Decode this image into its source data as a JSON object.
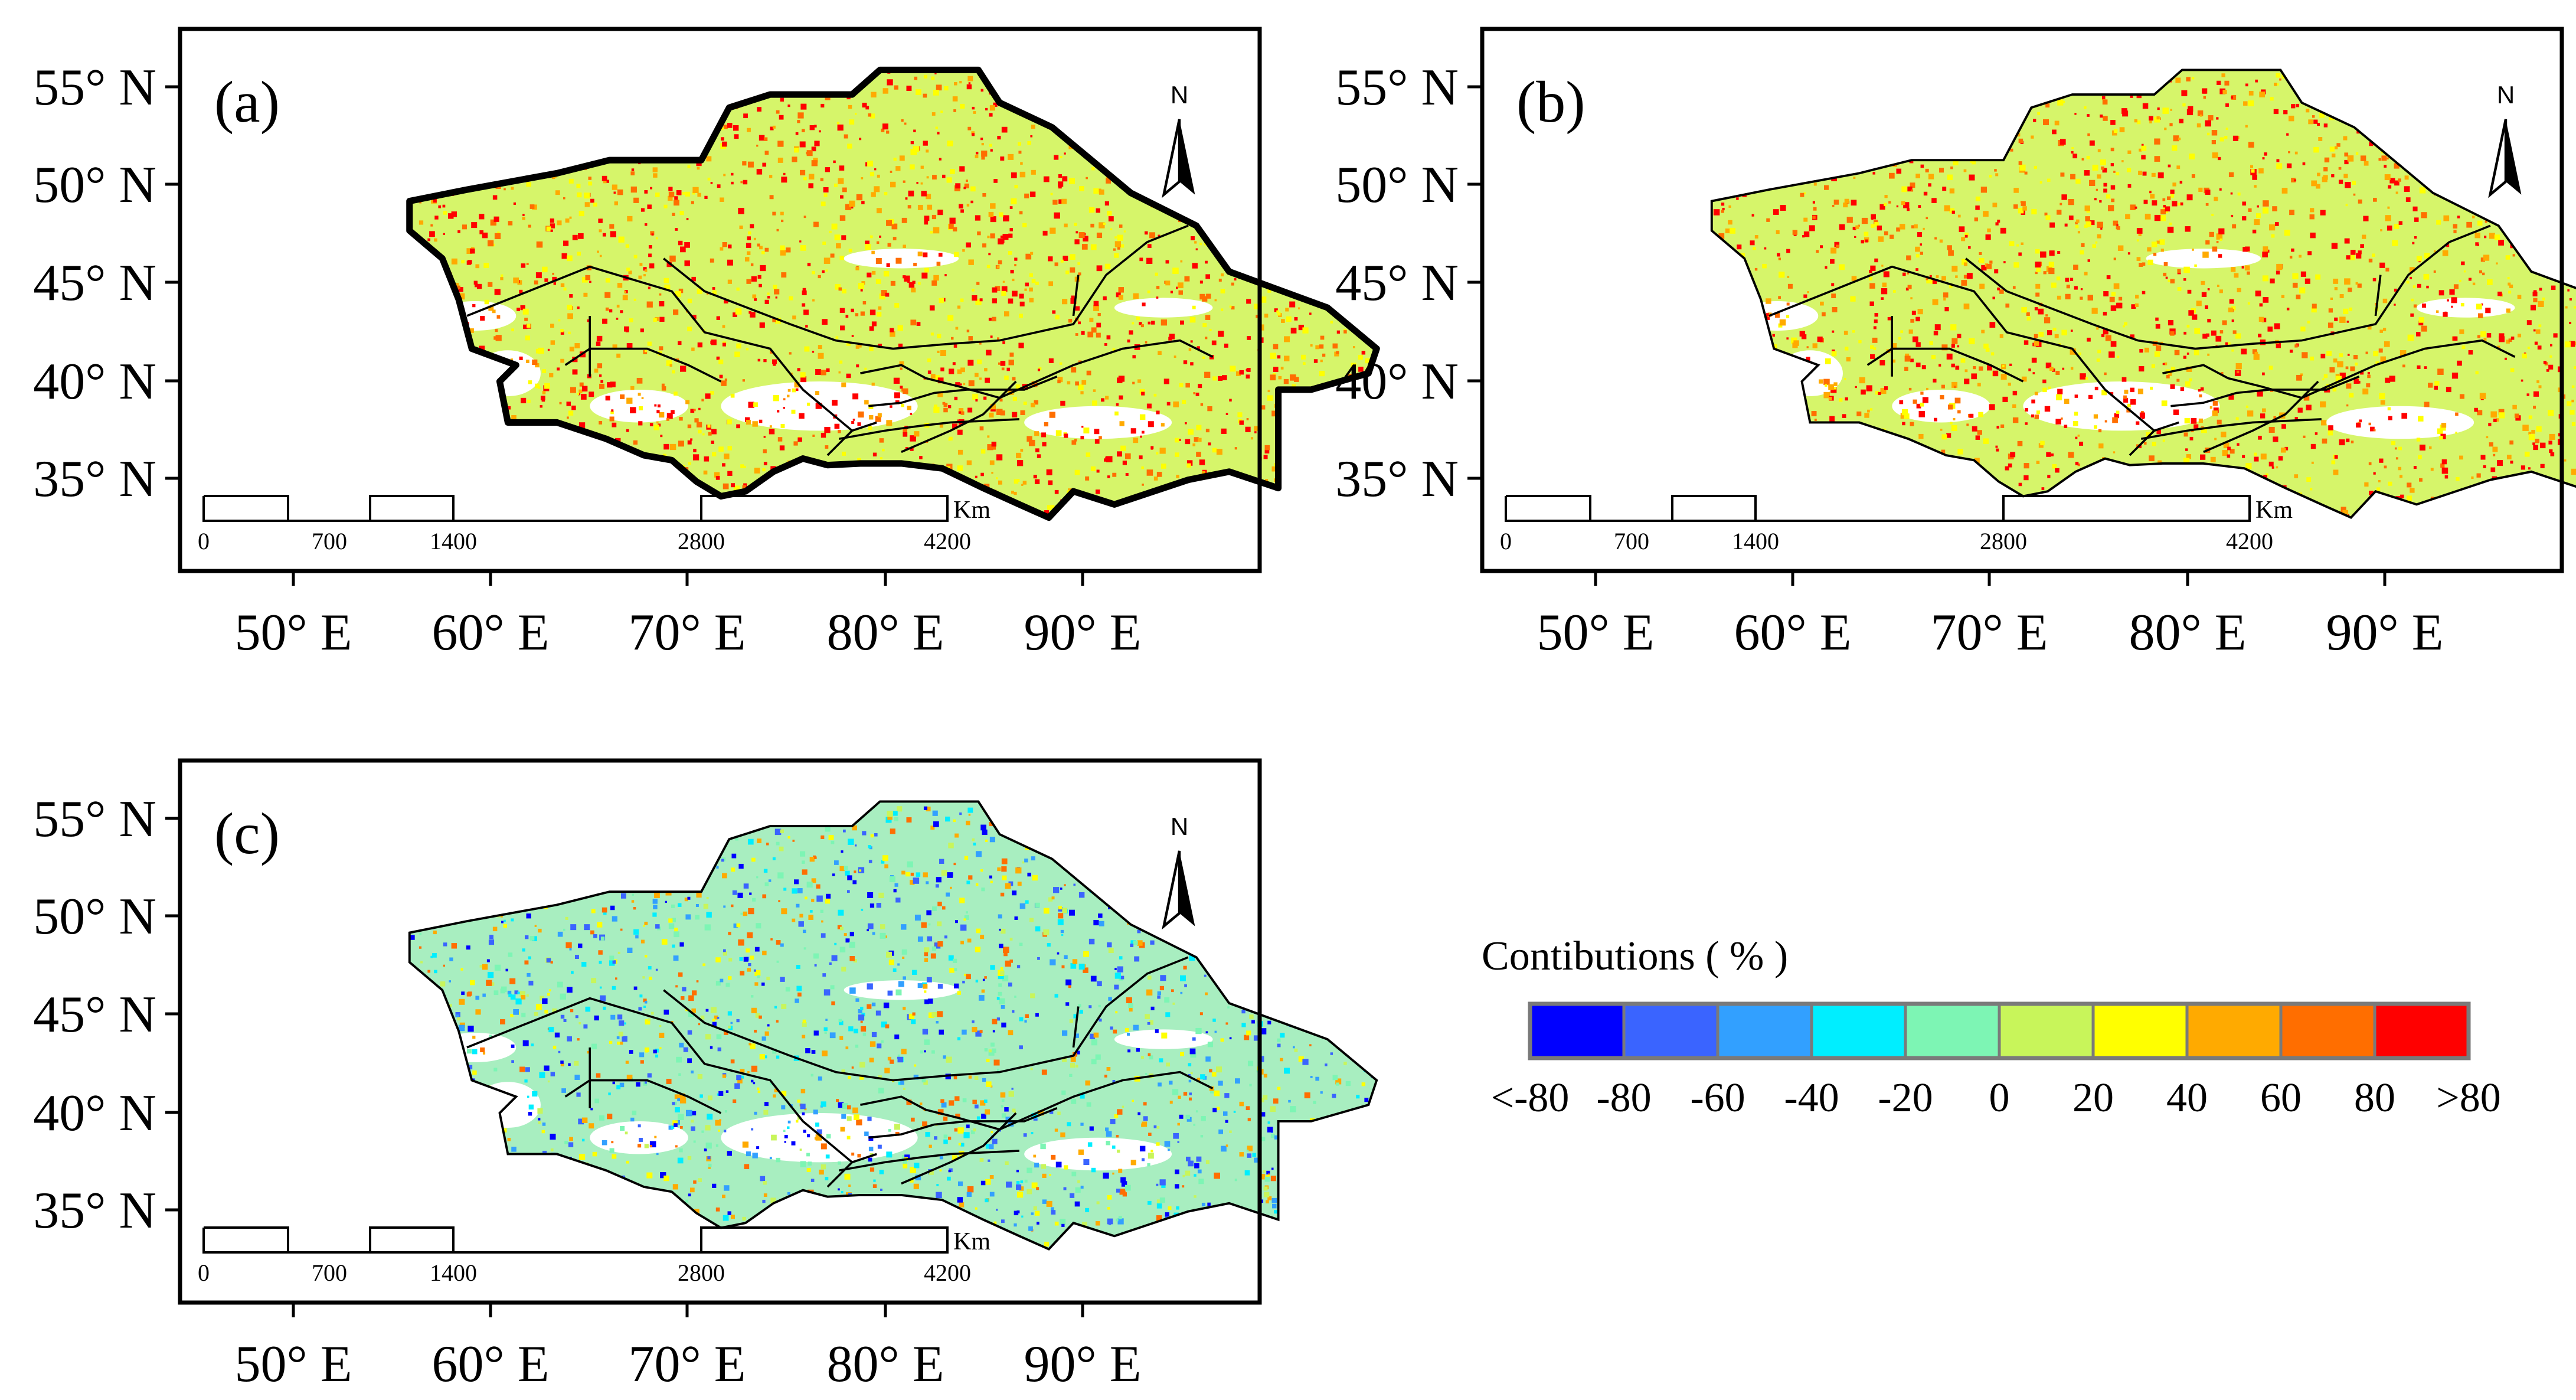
{
  "chart_data": [
    {
      "type": "heatmap",
      "panel_label": "(a)",
      "dominant_classes": [
        "20",
        "40",
        "60",
        "80",
        ">80"
      ],
      "x_ticks": [
        "50° E",
        "60° E",
        "70° E",
        "80° E",
        "90° E"
      ],
      "y_ticks": [
        "55° N",
        "50° N",
        "45° N",
        "40° N",
        "35° N"
      ],
      "north_label": "N",
      "scale_labels": [
        "0",
        "700",
        "1400",
        "2800",
        "4200"
      ],
      "scale_unit": "Km"
    },
    {
      "type": "heatmap",
      "panel_label": "(b)",
      "dominant_classes": [
        "20",
        "40",
        "60",
        "80",
        ">80"
      ],
      "x_ticks": [
        "50° E",
        "60° E",
        "70° E",
        "80° E",
        "90° E"
      ],
      "y_ticks": [
        "55° N",
        "50° N",
        "45° N",
        "40° N",
        "35° N"
      ],
      "north_label": "N",
      "scale_labels": [
        "0",
        "700",
        "1400",
        "2800",
        "4200"
      ],
      "scale_unit": "Km"
    },
    {
      "type": "heatmap",
      "panel_label": "(c)",
      "dominant_classes": [
        "<-80",
        "-80",
        "-60",
        "-40",
        "-20",
        "0",
        "20",
        "40",
        "60"
      ],
      "x_ticks": [
        "50° E",
        "60° E",
        "70° E",
        "80° E",
        "90° E"
      ],
      "y_ticks": [
        "55° N",
        "50° N",
        "45° N",
        "40° N",
        "35° N"
      ],
      "north_label": "N",
      "scale_labels": [
        "0",
        "700",
        "1400",
        "2800",
        "4200"
      ],
      "scale_unit": "Km"
    }
  ],
  "legend": {
    "title": "Contibutions ( % )",
    "ticks": [
      "<-80",
      "-80",
      "-60",
      "-40",
      "-20",
      "0",
      "20",
      "40",
      "60",
      "80",
      ">80"
    ],
    "colors": [
      "#0000ff",
      "#3a64ff",
      "#32a0ff",
      "#00eeff",
      "#7df5b4",
      "#c8f55a",
      "#ffff00",
      "#ffaa00",
      "#ff6e00",
      "#ff0000"
    ]
  }
}
